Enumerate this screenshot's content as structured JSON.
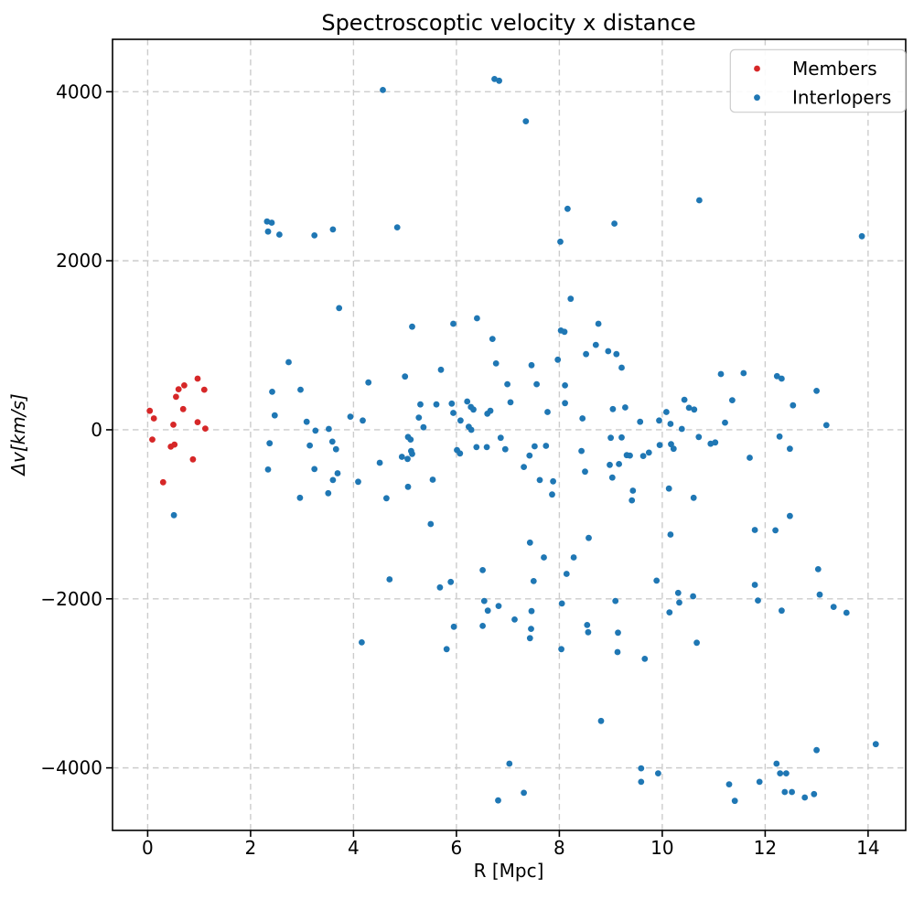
{
  "chart_data": {
    "type": "scatter",
    "title": "Spectroscoptic velocity x distance",
    "xlabel": "R [Mpc]",
    "ylabel": "Δv[km/s]",
    "xlim": [
      -0.683,
      14.731
    ],
    "ylim": [
      -4740,
      4620
    ],
    "x_ticks": [
      0,
      2,
      4,
      6,
      8,
      10,
      12,
      14
    ],
    "y_ticks": [
      -4000,
      -2000,
      0,
      2000,
      4000
    ],
    "grid": true,
    "grid_style": "dashed",
    "grid_color": "#cccccc",
    "spine_color": "#000000",
    "legend_position": "upper right",
    "series": [
      {
        "name": "Members",
        "color": "#d62728",
        "marker": "circle",
        "points": [
          [
            0.04,
            225
          ],
          [
            0.09,
            -115
          ],
          [
            0.12,
            135
          ],
          [
            0.3,
            -620
          ],
          [
            0.45,
            -200
          ],
          [
            0.5,
            60
          ],
          [
            0.52,
            -175
          ],
          [
            0.55,
            390
          ],
          [
            0.6,
            480
          ],
          [
            0.69,
            245
          ],
          [
            0.71,
            525
          ],
          [
            0.88,
            -350
          ],
          [
            0.97,
            605
          ],
          [
            0.97,
            90
          ],
          [
            1.1,
            475
          ],
          [
            1.12,
            15
          ]
        ]
      },
      {
        "name": "Interlopers",
        "color": "#1f77b4",
        "marker": "circle",
        "points": [
          [
            2.32,
            2465
          ],
          [
            2.41,
            2450
          ],
          [
            2.34,
            2345
          ],
          [
            2.56,
            2310
          ],
          [
            3.24,
            2300
          ],
          [
            3.6,
            2370
          ],
          [
            4.57,
            4020
          ],
          [
            6.74,
            4150
          ],
          [
            6.83,
            4130
          ],
          [
            7.35,
            3650
          ],
          [
            8.16,
            2615
          ],
          [
            4.85,
            2395
          ],
          [
            9.07,
            2440
          ],
          [
            8.02,
            2225
          ],
          [
            8.22,
            1550
          ],
          [
            10.72,
            2715
          ],
          [
            13.88,
            2290
          ],
          [
            3.72,
            1440
          ],
          [
            2.74,
            800
          ],
          [
            2.42,
            450
          ],
          [
            2.97,
            475
          ],
          [
            4.29,
            560
          ],
          [
            2.47,
            170
          ],
          [
            3.09,
            95
          ],
          [
            3.26,
            -10
          ],
          [
            3.52,
            10
          ],
          [
            3.94,
            155
          ],
          [
            4.18,
            110
          ],
          [
            2.37,
            -160
          ],
          [
            3.15,
            -185
          ],
          [
            3.59,
            -140
          ],
          [
            3.66,
            -230
          ],
          [
            2.34,
            -470
          ],
          [
            3.24,
            -465
          ],
          [
            3.69,
            -515
          ],
          [
            3.6,
            -595
          ],
          [
            4.09,
            -615
          ],
          [
            2.96,
            -805
          ],
          [
            3.51,
            -750
          ],
          [
            0.51,
            -1010
          ],
          [
            5.14,
            1220
          ],
          [
            5.94,
            1255
          ],
          [
            6.4,
            1320
          ],
          [
            6.7,
            1075
          ],
          [
            8.03,
            1175
          ],
          [
            8.1,
            1160
          ],
          [
            8.76,
            1255
          ],
          [
            8.52,
            895
          ],
          [
            8.71,
            1005
          ],
          [
            8.95,
            930
          ],
          [
            9.11,
            895
          ],
          [
            9.21,
            735
          ],
          [
            6.77,
            785
          ],
          [
            7.46,
            765
          ],
          [
            7.97,
            830
          ],
          [
            5.7,
            710
          ],
          [
            5.0,
            630
          ],
          [
            6.99,
            540
          ],
          [
            7.56,
            540
          ],
          [
            8.11,
            525
          ],
          [
            5.3,
            300
          ],
          [
            5.61,
            300
          ],
          [
            5.91,
            310
          ],
          [
            5.94,
            200
          ],
          [
            6.21,
            335
          ],
          [
            6.28,
            270
          ],
          [
            6.33,
            240
          ],
          [
            6.6,
            190
          ],
          [
            6.66,
            225
          ],
          [
            7.05,
            325
          ],
          [
            7.77,
            210
          ],
          [
            8.11,
            315
          ],
          [
            8.45,
            135
          ],
          [
            5.27,
            145
          ],
          [
            5.36,
            30
          ],
          [
            6.08,
            110
          ],
          [
            6.24,
            35
          ],
          [
            6.29,
            0
          ],
          [
            5.06,
            -85
          ],
          [
            5.11,
            -115
          ],
          [
            5.12,
            -250
          ],
          [
            5.14,
            -285
          ],
          [
            5.05,
            -345
          ],
          [
            4.94,
            -320
          ],
          [
            4.51,
            -390
          ],
          [
            6.86,
            -95
          ],
          [
            6.01,
            -240
          ],
          [
            6.07,
            -280
          ],
          [
            6.39,
            -205
          ],
          [
            6.59,
            -205
          ],
          [
            6.95,
            -230
          ],
          [
            7.42,
            -305
          ],
          [
            7.52,
            -195
          ],
          [
            7.74,
            -190
          ],
          [
            7.31,
            -440
          ],
          [
            7.62,
            -595
          ],
          [
            7.88,
            -610
          ],
          [
            7.86,
            -765
          ],
          [
            8.43,
            -250
          ],
          [
            8.5,
            -495
          ],
          [
            5.54,
            -590
          ],
          [
            5.06,
            -675
          ],
          [
            4.64,
            -810
          ],
          [
            5.5,
            -1115
          ],
          [
            8.57,
            -1280
          ],
          [
            7.43,
            -1335
          ],
          [
            7.7,
            -1510
          ],
          [
            8.28,
            -1510
          ],
          [
            6.51,
            -1660
          ],
          [
            9.04,
            245
          ],
          [
            9.28,
            265
          ],
          [
            9.0,
            -95
          ],
          [
            9.21,
            -90
          ],
          [
            9.31,
            -300
          ],
          [
            9.37,
            -305
          ],
          [
            8.98,
            -415
          ],
          [
            9.16,
            -405
          ],
          [
            9.03,
            -565
          ],
          [
            9.43,
            -720
          ],
          [
            9.41,
            -835
          ],
          [
            11.14,
            660
          ],
          [
            11.58,
            670
          ],
          [
            12.23,
            635
          ],
          [
            12.32,
            605
          ],
          [
            13.0,
            460
          ],
          [
            12.54,
            290
          ],
          [
            10.43,
            355
          ],
          [
            10.52,
            260
          ],
          [
            10.62,
            240
          ],
          [
            10.08,
            210
          ],
          [
            9.94,
            110
          ],
          [
            9.57,
            95
          ],
          [
            10.16,
            70
          ],
          [
            10.38,
            10
          ],
          [
            11.22,
            85
          ],
          [
            11.36,
            350
          ],
          [
            10.71,
            -85
          ],
          [
            9.95,
            -180
          ],
          [
            10.17,
            -170
          ],
          [
            10.22,
            -225
          ],
          [
            9.74,
            -270
          ],
          [
            9.63,
            -310
          ],
          [
            10.94,
            -165
          ],
          [
            11.03,
            -150
          ],
          [
            11.7,
            -330
          ],
          [
            12.28,
            -80
          ],
          [
            12.48,
            -225
          ],
          [
            13.19,
            55
          ],
          [
            10.13,
            -695
          ],
          [
            10.61,
            -805
          ],
          [
            12.48,
            -1020
          ],
          [
            11.8,
            -1185
          ],
          [
            12.2,
            -1190
          ],
          [
            10.16,
            -1240
          ],
          [
            13.03,
            -1650
          ],
          [
            4.16,
            -2515
          ],
          [
            4.7,
            -1770
          ],
          [
            5.68,
            -1865
          ],
          [
            5.89,
            -1800
          ],
          [
            7.5,
            -1790
          ],
          [
            8.14,
            -1705
          ],
          [
            6.54,
            -2025
          ],
          [
            6.61,
            -2140
          ],
          [
            6.82,
            -2085
          ],
          [
            7.13,
            -2245
          ],
          [
            6.51,
            -2320
          ],
          [
            5.95,
            -2330
          ],
          [
            5.81,
            -2595
          ],
          [
            7.46,
            -2145
          ],
          [
            7.45,
            -2355
          ],
          [
            7.43,
            -2465
          ],
          [
            8.05,
            -2055
          ],
          [
            8.04,
            -2595
          ],
          [
            8.54,
            -2310
          ],
          [
            8.56,
            -2395
          ],
          [
            9.09,
            -2025
          ],
          [
            9.14,
            -2400
          ],
          [
            9.13,
            -2630
          ],
          [
            8.81,
            -3445
          ],
          [
            7.03,
            -3950
          ],
          [
            7.31,
            -4295
          ],
          [
            6.81,
            -4385
          ],
          [
            9.89,
            -1785
          ],
          [
            10.31,
            -1930
          ],
          [
            10.33,
            -2045
          ],
          [
            10.6,
            -1970
          ],
          [
            10.14,
            -2160
          ],
          [
            10.67,
            -2520
          ],
          [
            9.66,
            -2710
          ],
          [
            11.8,
            -1835
          ],
          [
            11.86,
            -2020
          ],
          [
            12.32,
            -2140
          ],
          [
            13.06,
            -1950
          ],
          [
            13.33,
            -2095
          ],
          [
            13.58,
            -2165
          ],
          [
            14.15,
            -3720
          ],
          [
            13.0,
            -3790
          ],
          [
            12.22,
            -3950
          ],
          [
            9.59,
            -4005
          ],
          [
            9.59,
            -4165
          ],
          [
            9.92,
            -4065
          ],
          [
            11.3,
            -4195
          ],
          [
            11.41,
            -4390
          ],
          [
            11.89,
            -4165
          ],
          [
            12.29,
            -4065
          ],
          [
            12.41,
            -4065
          ],
          [
            12.38,
            -4285
          ],
          [
            12.52,
            -4285
          ],
          [
            12.77,
            -4350
          ],
          [
            12.95,
            -4310
          ]
        ]
      }
    ]
  }
}
